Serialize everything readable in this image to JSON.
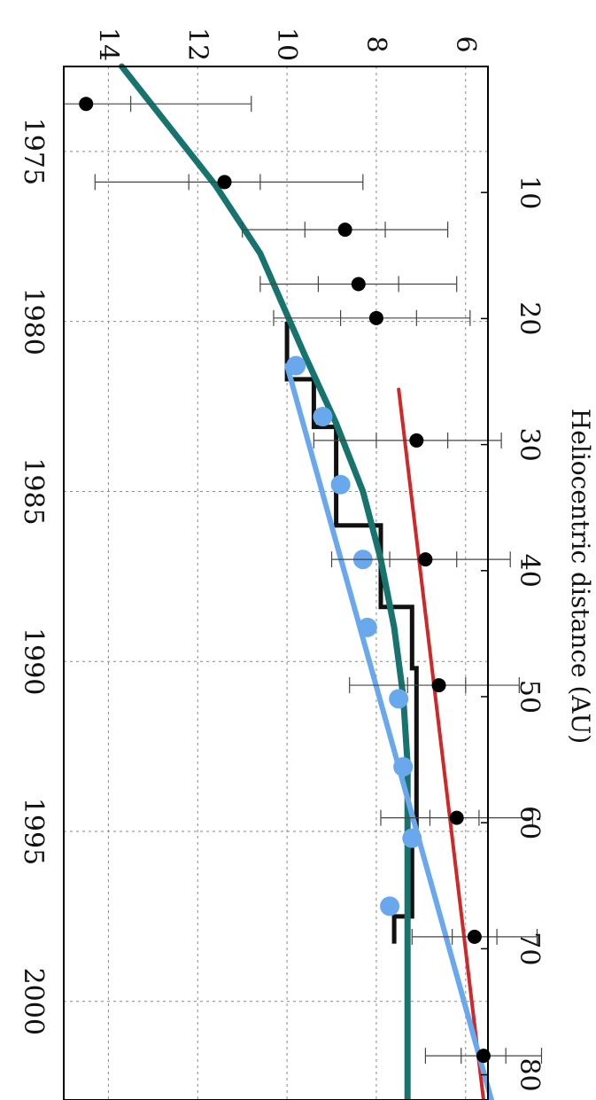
{
  "chart_data": {
    "type": "line",
    "title": "",
    "top_axis": {
      "label": "Heliocentric distance (AU)",
      "ticks": [
        10,
        20,
        30,
        40,
        50,
        60,
        70,
        80
      ],
      "range": [
        0,
        82
      ]
    },
    "bottom_axis": {
      "label": "",
      "ticks": [
        1975,
        1980,
        1985,
        1990,
        1995,
        2000
      ],
      "range": [
        1972.5,
        2002.9
      ]
    },
    "y_axis": {
      "label": "",
      "ticks": [
        6,
        8,
        10,
        12,
        14
      ],
      "range": [
        5.5,
        15
      ]
    },
    "grid": true,
    "series": [
      {
        "kind": "points-with-errorbars",
        "color": "#000000",
        "points": [
          {
            "x": 1973.6,
            "y": 14.5,
            "inner": [
              13.5,
              15.0
            ],
            "outer": [
              10.8,
              15.0
            ]
          },
          {
            "x": 1975.9,
            "y": 11.4,
            "inner": [
              10.6,
              12.2
            ],
            "outer": [
              8.3,
              14.3
            ]
          },
          {
            "x": 1977.3,
            "y": 8.7,
            "inner": [
              7.8,
              9.6
            ],
            "outer": [
              6.4,
              11.0
            ]
          },
          {
            "x": 1978.9,
            "y": 8.4,
            "inner": [
              7.5,
              9.3
            ],
            "outer": [
              6.2,
              10.6
            ]
          },
          {
            "x": 1979.9,
            "y": 8.0,
            "inner": [
              7.1,
              8.8
            ],
            "outer": [
              5.9,
              10.3
            ]
          },
          {
            "x": 1983.5,
            "y": 7.1,
            "inner": [
              6.4,
              8.0
            ],
            "outer": [
              5.2,
              9.4
            ]
          },
          {
            "x": 1987.0,
            "y": 6.9,
            "inner": [
              6.2,
              7.7
            ],
            "outer": [
              5.0,
              9.0
            ]
          },
          {
            "x": 1990.7,
            "y": 6.6,
            "inner": [
              6.0,
              7.3
            ],
            "outer": [
              4.8,
              8.6
            ]
          },
          {
            "x": 1994.6,
            "y": 6.2,
            "inner": [
              5.7,
              6.8
            ],
            "outer": [
              4.5,
              7.9
            ]
          },
          {
            "x": 1998.1,
            "y": 5.8,
            "inner": [
              5.3,
              6.3
            ],
            "outer": [
              4.4,
              7.2
            ]
          },
          {
            "x": 2001.6,
            "y": 5.6,
            "inner": [
              5.1,
              6.1
            ],
            "outer": [
              4.3,
              6.9
            ]
          }
        ]
      },
      {
        "kind": "step",
        "color": "#111111",
        "x": [
          1980.0,
          1981.7,
          1983.1,
          1986.0,
          1988.4,
          1990.2,
          1995.3,
          1997.5
        ],
        "y": [
          10.0,
          9.4,
          8.9,
          7.9,
          7.2,
          7.1,
          7.2,
          7.6
        ]
      },
      {
        "kind": "line",
        "color": "#17736d",
        "x": [
          1972.5,
          1974.0,
          1976.0,
          1978.0,
          1979.8,
          1981.0,
          1983.0,
          1985.0,
          1987.0,
          1989.0,
          1991.0,
          1993.0,
          1995.0,
          1997.0,
          1999.0,
          2001.0,
          2003.0
        ],
        "y": [
          13.7,
          12.8,
          11.6,
          10.6,
          10.0,
          9.6,
          8.9,
          8.3,
          7.9,
          7.6,
          7.4,
          7.3,
          7.3,
          7.3,
          7.3,
          7.3,
          7.3
        ]
      },
      {
        "kind": "line",
        "color": "#d02828",
        "x": [
          1982.0,
          2002.9
        ],
        "y": [
          7.5,
          5.6
        ]
      },
      {
        "kind": "line-with-markers",
        "color": "#6aa8ee",
        "line_x": [
          1981.3,
          2003.0
        ],
        "line_y": [
          10.0,
          5.4
        ],
        "markers": [
          {
            "x": 1981.3,
            "y": 9.8
          },
          {
            "x": 1982.8,
            "y": 9.2
          },
          {
            "x": 1984.8,
            "y": 8.8
          },
          {
            "x": 1987.0,
            "y": 8.3
          },
          {
            "x": 1989.0,
            "y": 8.2
          },
          {
            "x": 1991.1,
            "y": 7.5
          },
          {
            "x": 1993.1,
            "y": 7.4
          },
          {
            "x": 1995.2,
            "y": 7.2
          },
          {
            "x": 1997.2,
            "y": 7.7
          }
        ]
      }
    ]
  }
}
